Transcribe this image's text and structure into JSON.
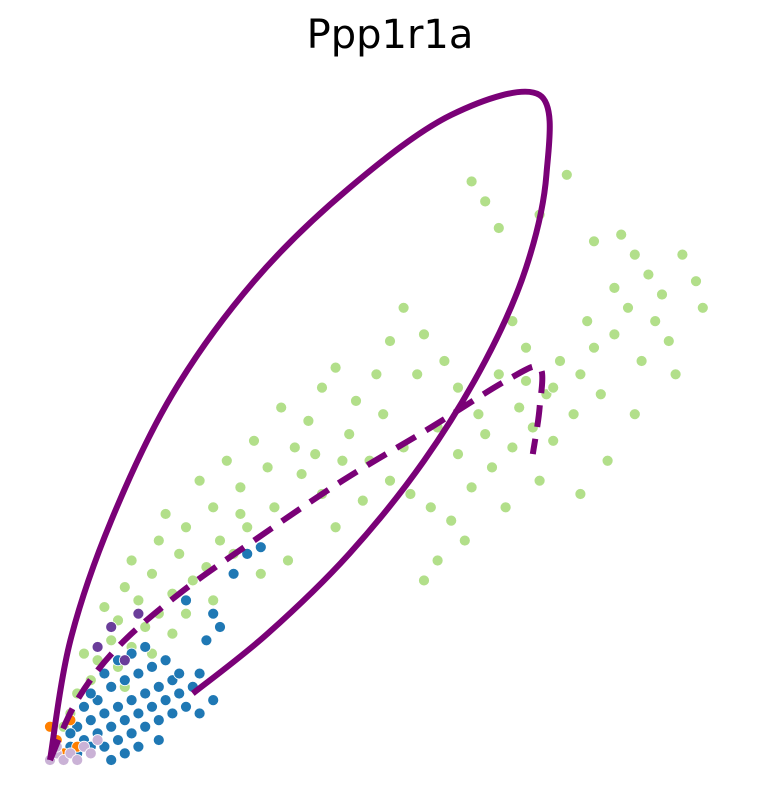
{
  "chart_data": {
    "type": "scatter",
    "title": "Ppp1r1a",
    "xlabel": "",
    "ylabel": "",
    "axes_visible": false,
    "grid": false,
    "legend": "none",
    "xlim": [
      0,
      1
    ],
    "ylim": [
      0,
      1
    ],
    "colors": {
      "light_green": "#b2df8a",
      "blue": "#1f78b4",
      "orange": "#ff7f00",
      "lavender": "#cab2d6",
      "purple": "#6a3d9a",
      "curve": "#7a0177"
    },
    "series": [
      {
        "color": "#b2df8a",
        "points": [
          [
            0.62,
            0.87
          ],
          [
            0.64,
            0.84
          ],
          [
            0.76,
            0.88
          ],
          [
            0.72,
            0.82
          ],
          [
            0.8,
            0.78
          ],
          [
            0.66,
            0.8
          ],
          [
            0.84,
            0.79
          ],
          [
            0.86,
            0.76
          ],
          [
            0.88,
            0.73
          ],
          [
            0.9,
            0.7
          ],
          [
            0.93,
            0.76
          ],
          [
            0.95,
            0.72
          ],
          [
            0.96,
            0.68
          ],
          [
            0.85,
            0.68
          ],
          [
            0.83,
            0.64
          ],
          [
            0.8,
            0.62
          ],
          [
            0.78,
            0.58
          ],
          [
            0.75,
            0.6
          ],
          [
            0.73,
            0.55
          ],
          [
            0.7,
            0.62
          ],
          [
            0.68,
            0.66
          ],
          [
            0.66,
            0.58
          ],
          [
            0.63,
            0.52
          ],
          [
            0.6,
            0.56
          ],
          [
            0.58,
            0.6
          ],
          [
            0.55,
            0.64
          ],
          [
            0.52,
            0.68
          ],
          [
            0.5,
            0.63
          ],
          [
            0.48,
            0.58
          ],
          [
            0.45,
            0.54
          ],
          [
            0.42,
            0.59
          ],
          [
            0.4,
            0.56
          ],
          [
            0.38,
            0.51
          ],
          [
            0.36,
            0.47
          ],
          [
            0.34,
            0.53
          ],
          [
            0.32,
            0.44
          ],
          [
            0.3,
            0.48
          ],
          [
            0.28,
            0.41
          ],
          [
            0.26,
            0.45
          ],
          [
            0.24,
            0.38
          ],
          [
            0.22,
            0.42
          ],
          [
            0.2,
            0.35
          ],
          [
            0.19,
            0.31
          ],
          [
            0.17,
            0.37
          ],
          [
            0.16,
            0.33
          ],
          [
            0.15,
            0.28
          ],
          [
            0.13,
            0.24
          ],
          [
            0.12,
            0.3
          ],
          [
            0.11,
            0.26
          ],
          [
            0.1,
            0.21
          ],
          [
            0.09,
            0.18
          ],
          [
            0.08,
            0.23
          ],
          [
            0.07,
            0.15
          ],
          [
            0.06,
            0.12
          ],
          [
            0.05,
            0.16
          ],
          [
            0.04,
            0.1
          ],
          [
            0.03,
            0.07
          ],
          [
            0.02,
            0.05
          ],
          [
            0.44,
            0.49
          ],
          [
            0.47,
            0.45
          ],
          [
            0.5,
            0.42
          ],
          [
            0.53,
            0.4
          ],
          [
            0.56,
            0.38
          ],
          [
            0.59,
            0.36
          ],
          [
            0.62,
            0.41
          ],
          [
            0.65,
            0.44
          ],
          [
            0.68,
            0.47
          ],
          [
            0.71,
            0.5
          ],
          [
            0.74,
            0.48
          ],
          [
            0.77,
            0.52
          ],
          [
            0.81,
            0.55
          ],
          [
            0.87,
            0.6
          ],
          [
            0.91,
            0.63
          ],
          [
            0.82,
            0.45
          ],
          [
            0.78,
            0.4
          ],
          [
            0.72,
            0.42
          ],
          [
            0.67,
            0.38
          ],
          [
            0.61,
            0.33
          ],
          [
            0.57,
            0.3
          ],
          [
            0.55,
            0.27
          ],
          [
            0.4,
            0.4
          ],
          [
            0.37,
            0.43
          ],
          [
            0.33,
            0.38
          ],
          [
            0.29,
            0.35
          ],
          [
            0.27,
            0.31
          ],
          [
            0.25,
            0.33
          ],
          [
            0.23,
            0.29
          ],
          [
            0.21,
            0.27
          ],
          [
            0.18,
            0.25
          ],
          [
            0.16,
            0.22
          ],
          [
            0.14,
            0.2
          ],
          [
            0.12,
            0.17
          ],
          [
            0.1,
            0.14
          ],
          [
            0.35,
            0.3
          ],
          [
            0.31,
            0.28
          ],
          [
            0.42,
            0.35
          ],
          [
            0.46,
            0.39
          ],
          [
            0.52,
            0.47
          ],
          [
            0.57,
            0.5
          ],
          [
            0.6,
            0.46
          ],
          [
            0.64,
            0.49
          ],
          [
            0.69,
            0.53
          ],
          [
            0.74,
            0.56
          ],
          [
            0.79,
            0.66
          ],
          [
            0.83,
            0.71
          ],
          [
            0.89,
            0.66
          ],
          [
            0.92,
            0.58
          ],
          [
            0.86,
            0.52
          ],
          [
            0.7,
            0.57
          ],
          [
            0.54,
            0.58
          ],
          [
            0.49,
            0.52
          ],
          [
            0.43,
            0.45
          ],
          [
            0.39,
            0.46
          ],
          [
            0.28,
            0.37
          ],
          [
            0.24,
            0.24
          ],
          [
            0.2,
            0.22
          ],
          [
            0.18,
            0.19
          ],
          [
            0.15,
            0.16
          ],
          [
            0.13,
            0.13
          ],
          [
            0.11,
            0.11
          ]
        ]
      },
      {
        "color": "#1f78b4",
        "points": [
          [
            0.02,
            0.01
          ],
          [
            0.03,
            0.02
          ],
          [
            0.04,
            0.01
          ],
          [
            0.05,
            0.03
          ],
          [
            0.06,
            0.02
          ],
          [
            0.07,
            0.04
          ],
          [
            0.08,
            0.02
          ],
          [
            0.09,
            0.05
          ],
          [
            0.1,
            0.03
          ],
          [
            0.11,
            0.06
          ],
          [
            0.12,
            0.04
          ],
          [
            0.13,
            0.07
          ],
          [
            0.14,
            0.05
          ],
          [
            0.15,
            0.08
          ],
          [
            0.16,
            0.06
          ],
          [
            0.17,
            0.09
          ],
          [
            0.18,
            0.07
          ],
          [
            0.19,
            0.1
          ],
          [
            0.2,
            0.08
          ],
          [
            0.04,
            0.05
          ],
          [
            0.06,
            0.06
          ],
          [
            0.08,
            0.07
          ],
          [
            0.1,
            0.08
          ],
          [
            0.12,
            0.09
          ],
          [
            0.14,
            0.1
          ],
          [
            0.16,
            0.11
          ],
          [
            0.18,
            0.12
          ],
          [
            0.05,
            0.08
          ],
          [
            0.07,
            0.09
          ],
          [
            0.09,
            0.11
          ],
          [
            0.11,
            0.12
          ],
          [
            0.13,
            0.13
          ],
          [
            0.15,
            0.14
          ],
          [
            0.17,
            0.15
          ],
          [
            0.08,
            0.13
          ],
          [
            0.1,
            0.15
          ],
          [
            0.12,
            0.16
          ],
          [
            0.14,
            0.17
          ],
          [
            0.06,
            0.1
          ],
          [
            0.03,
            0.04
          ],
          [
            0.21,
            0.11
          ],
          [
            0.22,
            0.13
          ],
          [
            0.24,
            0.22
          ],
          [
            0.27,
            0.28
          ],
          [
            0.29,
            0.31
          ],
          [
            0.31,
            0.32
          ],
          [
            0.2,
            0.24
          ],
          [
            0.23,
            0.18
          ],
          [
            0.25,
            0.2
          ],
          [
            0.19,
            0.13
          ],
          [
            0.16,
            0.03
          ],
          [
            0.13,
            0.02
          ],
          [
            0.11,
            0.01
          ],
          [
            0.09,
            0.0
          ],
          [
            0.22,
            0.07
          ],
          [
            0.24,
            0.09
          ]
        ]
      },
      {
        "color": "#ff7f00",
        "points": [
          [
            0.0,
            0.05
          ],
          [
            0.01,
            0.03
          ],
          [
            0.03,
            0.06
          ],
          [
            0.04,
            0.02
          ],
          [
            0.02,
            0.01
          ]
        ]
      },
      {
        "color": "#cab2d6",
        "points": [
          [
            0.0,
            0.0
          ],
          [
            0.01,
            0.01
          ],
          [
            0.02,
            0.0
          ],
          [
            0.03,
            0.01
          ],
          [
            0.04,
            0.0
          ],
          [
            0.05,
            0.02
          ],
          [
            0.06,
            0.01
          ],
          [
            0.07,
            0.03
          ],
          [
            0.01,
            0.02
          ]
        ]
      },
      {
        "color": "#6a3d9a",
        "points": [
          [
            0.07,
            0.17
          ],
          [
            0.09,
            0.2
          ],
          [
            0.13,
            0.22
          ],
          [
            0.11,
            0.15
          ]
        ]
      }
    ],
    "curves": [
      {
        "style": "solid",
        "color": "#7a0177",
        "points": [
          [
            0.0,
            0.0
          ],
          [
            0.03,
            0.18
          ],
          [
            0.09,
            0.36
          ],
          [
            0.18,
            0.55
          ],
          [
            0.3,
            0.72
          ],
          [
            0.44,
            0.86
          ],
          [
            0.59,
            0.97
          ],
          [
            0.72,
            1.0
          ],
          [
            0.73,
            0.88
          ],
          [
            0.7,
            0.74
          ],
          [
            0.64,
            0.6
          ],
          [
            0.55,
            0.45
          ],
          [
            0.44,
            0.31
          ],
          [
            0.32,
            0.19
          ],
          [
            0.21,
            0.1
          ]
        ]
      },
      {
        "style": "dashed",
        "color": "#7a0177",
        "points": [
          [
            0.0,
            0.0
          ],
          [
            0.04,
            0.09
          ],
          [
            0.1,
            0.17
          ],
          [
            0.19,
            0.25
          ],
          [
            0.3,
            0.33
          ],
          [
            0.43,
            0.42
          ],
          [
            0.56,
            0.5
          ],
          [
            0.67,
            0.57
          ],
          [
            0.72,
            0.59
          ],
          [
            0.72,
            0.53
          ],
          [
            0.71,
            0.46
          ]
        ]
      }
    ]
  }
}
